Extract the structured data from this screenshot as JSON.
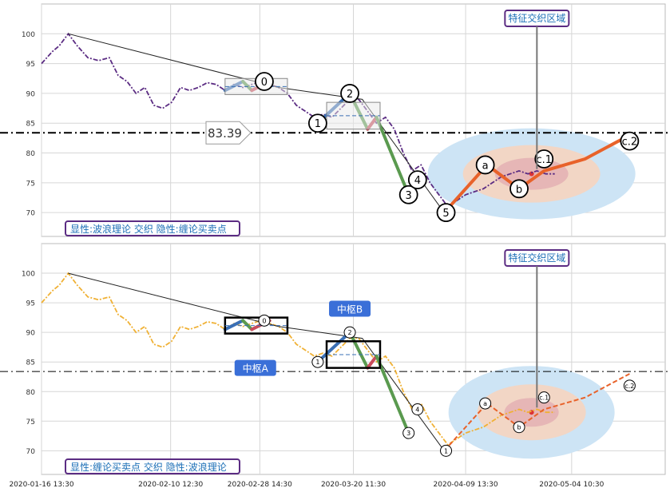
{
  "chart_data": [
    {
      "type": "line",
      "panel": "top",
      "ylim": [
        66,
        105
      ],
      "yticks": [
        70,
        75,
        80,
        85,
        90,
        95,
        100
      ],
      "grid": true,
      "hline": 83.39,
      "hline_label": "83.39",
      "legend_text": "显性:波浪理论 交织 隐性:缠论买卖点",
      "callout_text": "特征交织区域",
      "price": [
        [
          0,
          95
        ],
        [
          0.6,
          97
        ],
        [
          1.0,
          98
        ],
        [
          1.5,
          100
        ],
        [
          2.0,
          98
        ],
        [
          2.6,
          96
        ],
        [
          3.2,
          95.5
        ],
        [
          3.8,
          96
        ],
        [
          4.3,
          93
        ],
        [
          4.8,
          92
        ],
        [
          5.3,
          90
        ],
        [
          5.8,
          91
        ],
        [
          6.3,
          88
        ],
        [
          6.8,
          87.5
        ],
        [
          7.3,
          88.5
        ],
        [
          7.8,
          91
        ],
        [
          8.3,
          90.5
        ],
        [
          8.8,
          91
        ],
        [
          9.3,
          91.8
        ],
        [
          9.8,
          91.5
        ],
        [
          10.3,
          90.5
        ],
        [
          10.8,
          91.5
        ],
        [
          11.3,
          91
        ],
        [
          11.8,
          91.5
        ],
        [
          12.3,
          92
        ],
        [
          12.8,
          91.5
        ],
        [
          13.3,
          91
        ],
        [
          13.8,
          90
        ],
        [
          14.3,
          88
        ],
        [
          14.8,
          87
        ],
        [
          15.3,
          86
        ],
        [
          15.8,
          86.5
        ],
        [
          16.3,
          86
        ],
        [
          16.8,
          87.5
        ],
        [
          17.3,
          89
        ],
        [
          17.8,
          89
        ],
        [
          18.3,
          87
        ],
        [
          18.8,
          85
        ],
        [
          19.3,
          86
        ],
        [
          19.8,
          84
        ],
        [
          20.3,
          80
        ],
        [
          20.8,
          77
        ],
        [
          21.3,
          78
        ],
        [
          21.8,
          75
        ],
        [
          22.3,
          73
        ],
        [
          22.8,
          71
        ],
        [
          23.3,
          72
        ],
        [
          23.8,
          73
        ],
        [
          24.3,
          73.5
        ],
        [
          24.8,
          74
        ],
        [
          25.3,
          75
        ],
        [
          25.8,
          76
        ],
        [
          26.3,
          76.5
        ],
        [
          26.8,
          77
        ],
        [
          27.3,
          76.5
        ],
        [
          27.8,
          77
        ],
        [
          28.3,
          76.5
        ],
        [
          28.8,
          76.5
        ]
      ],
      "trend_line": [
        [
          1.5,
          100
        ],
        [
          13.3,
          91
        ],
        [
          18.0,
          89
        ],
        [
          22.6,
          70
        ]
      ],
      "waves": [
        {
          "label": "0",
          "x": 12.5,
          "y": 92
        },
        {
          "label": "1",
          "x": 15.5,
          "y": 85
        },
        {
          "label": "2",
          "x": 17.3,
          "y": 90
        },
        {
          "label": "3",
          "x": 20.6,
          "y": 73
        },
        {
          "label": "4",
          "x": 21.1,
          "y": 75.5
        },
        {
          "label": "5",
          "x": 22.7,
          "y": 70
        },
        {
          "label": "a",
          "x": 24.9,
          "y": 78
        },
        {
          "label": "b",
          "x": 26.8,
          "y": 74
        },
        {
          "label": "c.1",
          "x": 28.2,
          "y": 79
        },
        {
          "label": "c.2",
          "x": 33.0,
          "y": 82
        }
      ],
      "projection": [
        [
          22.6,
          70
        ],
        [
          25.0,
          78
        ],
        [
          26.8,
          74
        ],
        [
          28.2,
          77
        ],
        [
          30.5,
          79
        ],
        [
          33.0,
          83
        ]
      ]
    },
    {
      "type": "line",
      "panel": "bottom",
      "ylim": [
        66,
        105
      ],
      "yticks": [
        70,
        75,
        80,
        85,
        90,
        95,
        100
      ],
      "grid": true,
      "hline": 83.39,
      "legend_text": "显性:缠论买卖点 交织 隐性:波浪理论",
      "callout_text": "特征交织区域",
      "zhongshu_a": "中枢A",
      "zhongshu_b": "中枢B",
      "price": [
        [
          0,
          95
        ],
        [
          0.6,
          97
        ],
        [
          1.0,
          98
        ],
        [
          1.5,
          100
        ],
        [
          2.0,
          98
        ],
        [
          2.6,
          96
        ],
        [
          3.2,
          95.5
        ],
        [
          3.8,
          96
        ],
        [
          4.3,
          93
        ],
        [
          4.8,
          92
        ],
        [
          5.3,
          90
        ],
        [
          5.8,
          91
        ],
        [
          6.3,
          88
        ],
        [
          6.8,
          87.5
        ],
        [
          7.3,
          88.5
        ],
        [
          7.8,
          91
        ],
        [
          8.3,
          90.5
        ],
        [
          8.8,
          91
        ],
        [
          9.3,
          91.8
        ],
        [
          9.8,
          91.5
        ],
        [
          10.3,
          90.5
        ],
        [
          10.8,
          91.5
        ],
        [
          11.3,
          91
        ],
        [
          11.8,
          91.5
        ],
        [
          12.3,
          92
        ],
        [
          12.8,
          91.5
        ],
        [
          13.3,
          91
        ],
        [
          13.8,
          90
        ],
        [
          14.3,
          88
        ],
        [
          14.8,
          87
        ],
        [
          15.3,
          86
        ],
        [
          15.8,
          86.5
        ],
        [
          16.3,
          86
        ],
        [
          16.8,
          87.5
        ],
        [
          17.3,
          89
        ],
        [
          17.8,
          89
        ],
        [
          18.3,
          87
        ],
        [
          18.8,
          85
        ],
        [
          19.3,
          86
        ],
        [
          19.8,
          84
        ],
        [
          20.3,
          80
        ],
        [
          20.8,
          77
        ],
        [
          21.3,
          78
        ],
        [
          21.8,
          75
        ],
        [
          22.3,
          73
        ],
        [
          22.8,
          71
        ],
        [
          23.3,
          72
        ],
        [
          23.8,
          73
        ],
        [
          24.3,
          73.5
        ],
        [
          24.8,
          74
        ],
        [
          25.3,
          75
        ],
        [
          25.8,
          76
        ],
        [
          26.3,
          76.5
        ],
        [
          26.8,
          77
        ],
        [
          27.3,
          76.5
        ],
        [
          27.8,
          77
        ],
        [
          28.3,
          76.5
        ],
        [
          28.8,
          76.5
        ]
      ],
      "xticks": [
        "2020-01-16 13:30",
        "2020-02-10 12:30",
        "2020-02-28 14:30",
        "2020-03-20 11:30",
        "2020-04-09 13:30",
        "2020-05-04 10:30"
      ],
      "waves": [
        {
          "label": "0",
          "x": 12.5,
          "y": 92
        },
        {
          "label": "1",
          "x": 15.5,
          "y": 85
        },
        {
          "label": "2",
          "x": 17.3,
          "y": 90
        },
        {
          "label": "3",
          "x": 20.6,
          "y": 73
        },
        {
          "label": "4",
          "x": 21.1,
          "y": 77
        },
        {
          "label": "1",
          "x": 22.7,
          "y": 70
        },
        {
          "label": "a",
          "x": 24.9,
          "y": 78
        },
        {
          "label": "b",
          "x": 26.8,
          "y": 74
        },
        {
          "label": "c.1",
          "x": 28.2,
          "y": 79
        },
        {
          "label": "c.2",
          "x": 33.0,
          "y": 81
        }
      ]
    }
  ],
  "colors": {
    "price_top": "#5b2c83",
    "price_bottom": "#f0b135",
    "seg_blue": "#3a6fb4",
    "seg_green": "#5a9a4f",
    "seg_red": "#c94b5b",
    "orange_proj": "#e8622a",
    "ellipse_outer": "#cde4f5",
    "ellipse_mid": "#f2d6c5",
    "ellipse_inner": "#e6b6b6",
    "label_border": "#5b2c83",
    "label_text": "#1c6fb7"
  }
}
